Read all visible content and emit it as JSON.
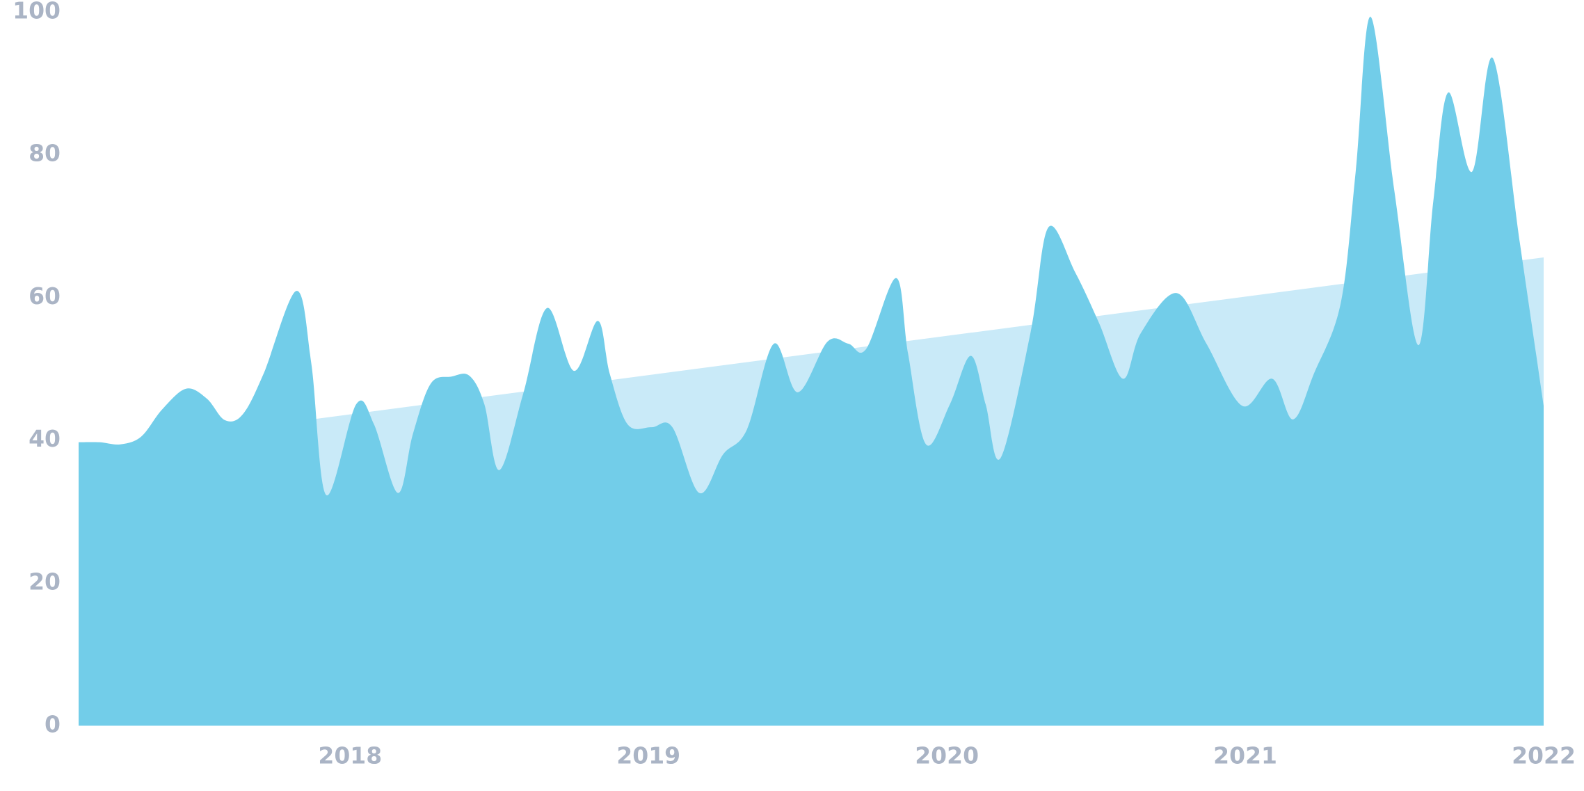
{
  "chart_data": {
    "type": "area",
    "xlim": [
      2017.09,
      2022.0
    ],
    "xticks": [
      2018,
      2019,
      2020,
      2021,
      2022
    ],
    "ylim": [
      0,
      100
    ],
    "yticks": [
      0,
      20,
      40,
      60,
      80,
      100
    ],
    "grid": false,
    "series": [
      {
        "color": "#c9eaf8",
        "smooth": false,
        "x": [
          2017.09,
          2022.0
        ],
        "values": [
          38.6,
          65.6
        ]
      },
      {
        "color": "#72cde9",
        "smooth": true,
        "x": [
          2017.09,
          2017.16,
          2017.23,
          2017.3,
          2017.37,
          2017.45,
          2017.52,
          2017.58,
          2017.64,
          2017.71,
          2017.82,
          2017.87,
          2017.92,
          2018.02,
          2018.08,
          2018.16,
          2018.21,
          2018.27,
          2018.34,
          2018.4,
          2018.45,
          2018.5,
          2018.58,
          2018.66,
          2018.75,
          2018.83,
          2018.87,
          2018.93,
          2019.01,
          2019.08,
          2019.17,
          2019.25,
          2019.33,
          2019.42,
          2019.5,
          2019.6,
          2019.67,
          2019.73,
          2019.83,
          2019.87,
          2019.93,
          2020.01,
          2020.08,
          2020.13,
          2020.18,
          2020.28,
          2020.34,
          2020.43,
          2020.51,
          2020.59,
          2020.65,
          2020.77,
          2020.87,
          2020.99,
          2021.09,
          2021.16,
          2021.23,
          2021.32,
          2021.37,
          2021.42,
          2021.5,
          2021.58,
          2021.63,
          2021.68,
          2021.76,
          2021.83,
          2021.92,
          2022.0
        ],
        "values": [
          39.7,
          39.7,
          39.4,
          40.5,
          44.3,
          47.2,
          45.8,
          42.8,
          43.6,
          49.3,
          60.9,
          50.7,
          32.3,
          45.0,
          42.2,
          32.6,
          40.8,
          47.9,
          48.9,
          49.0,
          45.0,
          35.8,
          46.5,
          58.5,
          49.7,
          56.7,
          49.3,
          42.2,
          41.8,
          41.8,
          32.6,
          38.0,
          41.5,
          53.5,
          46.7,
          53.8,
          53.5,
          52.8,
          62.7,
          52.1,
          39.4,
          45.0,
          51.8,
          45.0,
          37.5,
          55.0,
          69.8,
          63.5,
          56.4,
          48.6,
          55.0,
          60.6,
          53.5,
          44.8,
          48.6,
          42.9,
          49.3,
          59.2,
          77.6,
          99.3,
          74.8,
          53.3,
          73.4,
          88.7,
          77.6,
          93.5,
          67.7,
          44.8
        ]
      }
    ]
  }
}
